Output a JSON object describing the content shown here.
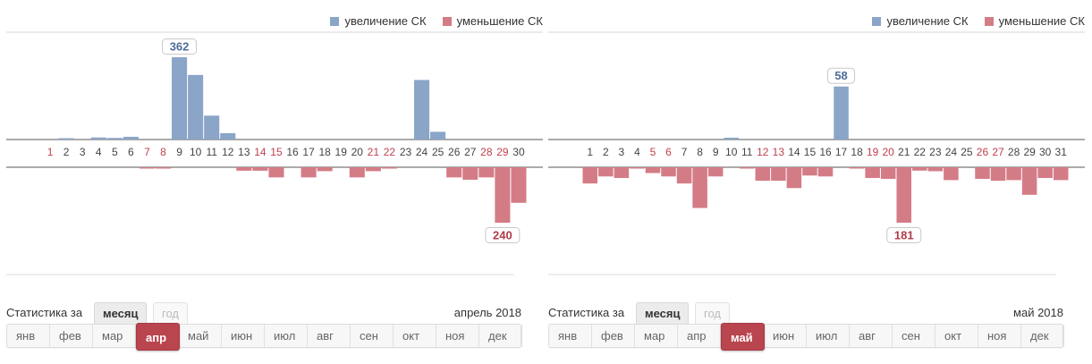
{
  "legend": {
    "increase_label": "увеличение СК",
    "decrease_label": "уменьшение СК",
    "increase_color": "#8aa5c8",
    "decrease_color": "#d47c86"
  },
  "stats": {
    "label": "Статистика за",
    "tabs": [
      "месяц",
      "год"
    ],
    "active_tab": "месяц"
  },
  "months": [
    "янв",
    "фев",
    "мар",
    "апр",
    "май",
    "июн",
    "июл",
    "авг",
    "сен",
    "окт",
    "ноя",
    "дек"
  ],
  "panels": [
    {
      "period_label": "апрель 2018",
      "active_month": "апр",
      "weekend_days": [
        1,
        7,
        8,
        14,
        15,
        21,
        22,
        28,
        29
      ]
    },
    {
      "period_label": "май 2018",
      "active_month": "май",
      "weekend_days": [
        5,
        6,
        12,
        13,
        19,
        20,
        26,
        27
      ]
    }
  ],
  "chart_data": [
    {
      "type": "bar",
      "categories": [
        "1",
        "2",
        "3",
        "4",
        "5",
        "6",
        "7",
        "8",
        "9",
        "10",
        "11",
        "12",
        "13",
        "14",
        "15",
        "16",
        "17",
        "18",
        "19",
        "20",
        "21",
        "22",
        "23",
        "24",
        "25",
        "26",
        "27",
        "28",
        "29",
        "30"
      ],
      "series": [
        {
          "name": "увеличение СК",
          "values": [
            0,
            5,
            0,
            9,
            7,
            12,
            0,
            0,
            362,
            284,
            105,
            28,
            0,
            0,
            0,
            0,
            0,
            0,
            0,
            0,
            0,
            0,
            0,
            262,
            34,
            0,
            0,
            0,
            0,
            0
          ]
        },
        {
          "name": "уменьшение СК",
          "values": [
            0,
            0,
            0,
            0,
            0,
            0,
            4,
            4,
            0,
            0,
            0,
            0,
            15,
            15,
            44,
            0,
            44,
            17,
            0,
            44,
            17,
            4,
            0,
            0,
            0,
            44,
            54,
            44,
            240,
            154
          ]
        }
      ],
      "annotations": [
        {
          "category": "9",
          "series": "увеличение СК",
          "value": 362,
          "text": "362"
        },
        {
          "category": "29",
          "series": "уменьшение СК",
          "value": 240,
          "text": "240"
        }
      ],
      "ylim_increase": [
        0,
        362
      ],
      "ylim_decrease": [
        0,
        240
      ]
    },
    {
      "type": "bar",
      "categories": [
        "1",
        "2",
        "3",
        "4",
        "5",
        "6",
        "7",
        "8",
        "9",
        "10",
        "11",
        "12",
        "13",
        "14",
        "15",
        "16",
        "17",
        "18",
        "19",
        "20",
        "21",
        "22",
        "23",
        "24",
        "25",
        "26",
        "27",
        "28",
        "29",
        "30",
        "31"
      ],
      "series": [
        {
          "name": "увеличение СК",
          "values": [
            0,
            0,
            0,
            0,
            0,
            0,
            0,
            0,
            0,
            2,
            0,
            0,
            0,
            0,
            0,
            0,
            58,
            0,
            0,
            0,
            0,
            0,
            0,
            0,
            0,
            0,
            0,
            0,
            0,
            0,
            0
          ]
        },
        {
          "name": "уменьшение СК",
          "values": [
            53,
            30,
            35,
            2,
            19,
            30,
            53,
            133,
            30,
            0,
            2,
            44,
            44,
            68,
            27,
            30,
            0,
            2,
            35,
            38,
            181,
            11,
            13,
            42,
            0,
            38,
            44,
            42,
            90,
            35,
            42
          ]
        }
      ],
      "annotations": [
        {
          "category": "17",
          "series": "увеличение СК",
          "value": 58,
          "text": "58"
        },
        {
          "category": "21",
          "series": "уменьшение СК",
          "value": 181,
          "text": "181"
        }
      ],
      "ylim_increase": [
        0,
        90
      ],
      "ylim_decrease": [
        0,
        181
      ]
    }
  ]
}
